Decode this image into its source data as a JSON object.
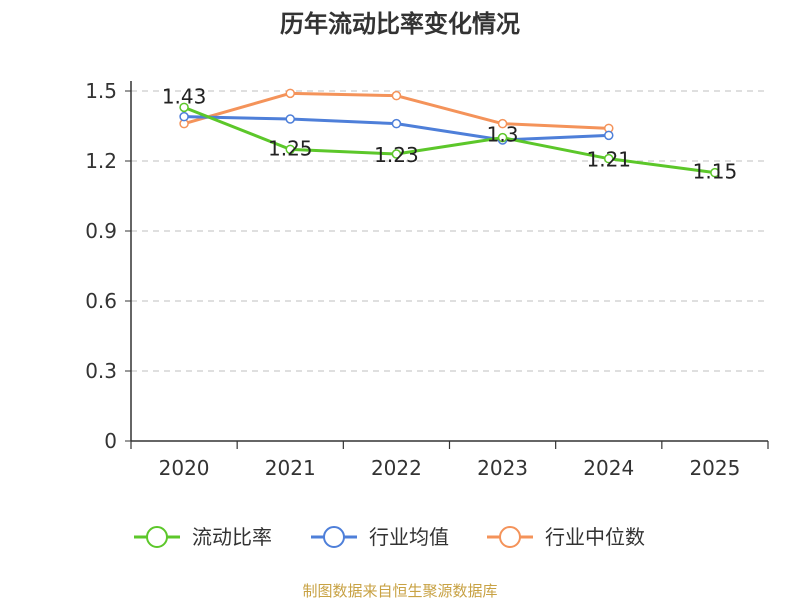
{
  "chart_data": {
    "type": "line",
    "title": "历年流动比率变化情况",
    "categories": [
      "2020",
      "2021",
      "2022",
      "2023",
      "2024",
      "2025"
    ],
    "ylim": [
      0,
      1.5
    ],
    "yticks": [
      "0",
      "0.3",
      "0.6",
      "0.9",
      "1.2",
      "1.5"
    ],
    "ytick_values": [
      0,
      0.3,
      0.6,
      0.9,
      1.2,
      1.5
    ],
    "grid": true,
    "legend_position": "bottom",
    "series": [
      {
        "name": "流动比率",
        "color": "#5cc72a",
        "values": [
          1.43,
          1.25,
          1.23,
          1.3,
          1.21,
          1.15
        ],
        "labels": [
          "1.43",
          "1.25",
          "1.23",
          "1.3",
          "1.21",
          "1.15"
        ]
      },
      {
        "name": "行业均值",
        "color": "#4e7fd9",
        "values": [
          1.39,
          1.38,
          1.36,
          1.29,
          1.31,
          null
        ]
      },
      {
        "name": "行业中位数",
        "color": "#f4935a",
        "values": [
          1.36,
          1.49,
          1.48,
          1.36,
          1.34,
          null
        ]
      }
    ]
  },
  "source_text": "制图数据来自恒生聚源数据库"
}
